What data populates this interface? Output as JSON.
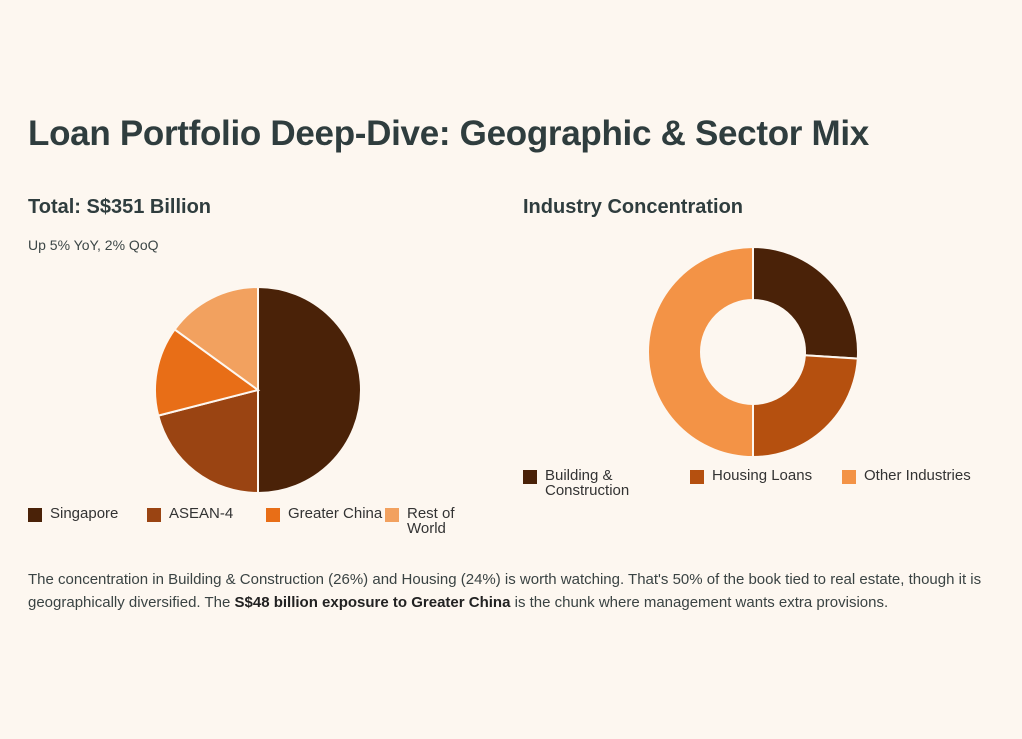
{
  "page": {
    "title": "Loan Portfolio Deep-Dive: Geographic & Sector Mix"
  },
  "chart_data": [
    {
      "type": "pie",
      "title": "Total: S$351 Billion",
      "subtitle": "Up 5% YoY, 2% QoQ",
      "categories": [
        "Singapore",
        "ASEAN-4",
        "Greater China",
        "Rest of World"
      ],
      "values": [
        50,
        21,
        14,
        15
      ],
      "colors": [
        "#4a2208",
        "#9a4412",
        "#e86e17",
        "#f2a15f"
      ]
    },
    {
      "type": "pie",
      "variant": "donut",
      "title": "Industry Concentration",
      "categories": [
        "Building & Construction",
        "Housing Loans",
        "Other Industries"
      ],
      "values": [
        26,
        24,
        50
      ],
      "colors": [
        "#4a2208",
        "#b5500f",
        "#f39346"
      ]
    }
  ],
  "footnote": {
    "text_before": "The concentration in Building & Construction (26%) and Housing (24%) is worth watching. That's 50% of the book tied to real estate, though it is geographically diversified. The ",
    "bold": "S$48 billion exposure to Greater China",
    "text_after": " is the chunk where management wants extra provisions."
  }
}
